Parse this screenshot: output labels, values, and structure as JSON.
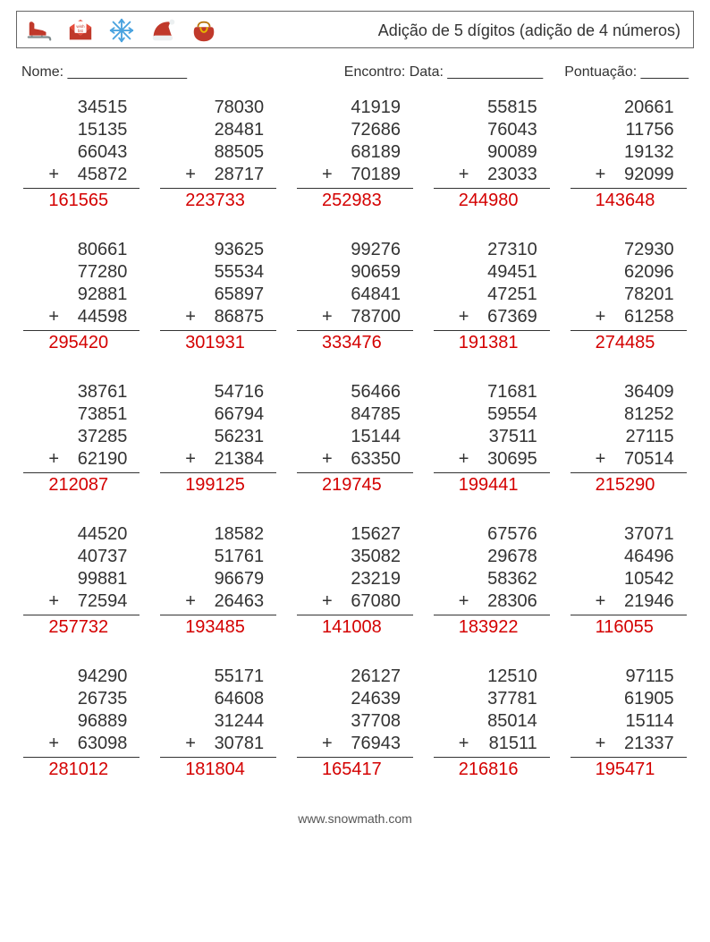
{
  "title": "Adição de 5 dígitos (adição de 4 números)",
  "labels": {
    "name": "Nome: _______________",
    "date": "Encontro: Data: ____________",
    "score": "Pontuação: ______"
  },
  "style": {
    "answer_color": "#d40000",
    "text_color": "#333333",
    "plus_sign": "+",
    "font_size_pt": 20,
    "columns": 5,
    "rows": 5
  },
  "problems": [
    {
      "a": [
        "34515",
        "15135",
        "66043",
        "45872"
      ],
      "ans": "161565"
    },
    {
      "a": [
        "78030",
        "28481",
        "88505",
        "28717"
      ],
      "ans": "223733"
    },
    {
      "a": [
        "41919",
        "72686",
        "68189",
        "70189"
      ],
      "ans": "252983"
    },
    {
      "a": [
        "55815",
        "76043",
        "90089",
        "23033"
      ],
      "ans": "244980"
    },
    {
      "a": [
        "20661",
        "11756",
        "19132",
        "92099"
      ],
      "ans": "143648"
    },
    {
      "a": [
        "80661",
        "77280",
        "92881",
        "44598"
      ],
      "ans": "295420"
    },
    {
      "a": [
        "93625",
        "55534",
        "65897",
        "86875"
      ],
      "ans": "301931"
    },
    {
      "a": [
        "99276",
        "90659",
        "64841",
        "78700"
      ],
      "ans": "333476"
    },
    {
      "a": [
        "27310",
        "49451",
        "47251",
        "67369"
      ],
      "ans": "191381"
    },
    {
      "a": [
        "72930",
        "62096",
        "78201",
        "61258"
      ],
      "ans": "274485"
    },
    {
      "a": [
        "38761",
        "73851",
        "37285",
        "62190"
      ],
      "ans": "212087"
    },
    {
      "a": [
        "54716",
        "66794",
        "56231",
        "21384"
      ],
      "ans": "199125"
    },
    {
      "a": [
        "56466",
        "84785",
        "15144",
        "63350"
      ],
      "ans": "219745"
    },
    {
      "a": [
        "71681",
        "59554",
        "37511",
        "30695"
      ],
      "ans": "199441"
    },
    {
      "a": [
        "36409",
        "81252",
        "27115",
        "70514"
      ],
      "ans": "215290"
    },
    {
      "a": [
        "44520",
        "40737",
        "99881",
        "72594"
      ],
      "ans": "257732"
    },
    {
      "a": [
        "18582",
        "51761",
        "96679",
        "26463"
      ],
      "ans": "193485"
    },
    {
      "a": [
        "15627",
        "35082",
        "23219",
        "67080"
      ],
      "ans": "141008"
    },
    {
      "a": [
        "67576",
        "29678",
        "58362",
        "28306"
      ],
      "ans": "183922"
    },
    {
      "a": [
        "37071",
        "46496",
        "10542",
        "21946"
      ],
      "ans": "116055"
    },
    {
      "a": [
        "94290",
        "26735",
        "96889",
        "63098"
      ],
      "ans": "281012"
    },
    {
      "a": [
        "55171",
        "64608",
        "31244",
        "30781"
      ],
      "ans": "181804"
    },
    {
      "a": [
        "26127",
        "24639",
        "37708",
        "76943"
      ],
      "ans": "165417"
    },
    {
      "a": [
        "12510",
        "37781",
        "85014",
        "81511"
      ],
      "ans": "216816"
    },
    {
      "a": [
        "97115",
        "61905",
        "15114",
        "21337"
      ],
      "ans": "195471"
    }
  ],
  "footer": "www.snowmath.com"
}
